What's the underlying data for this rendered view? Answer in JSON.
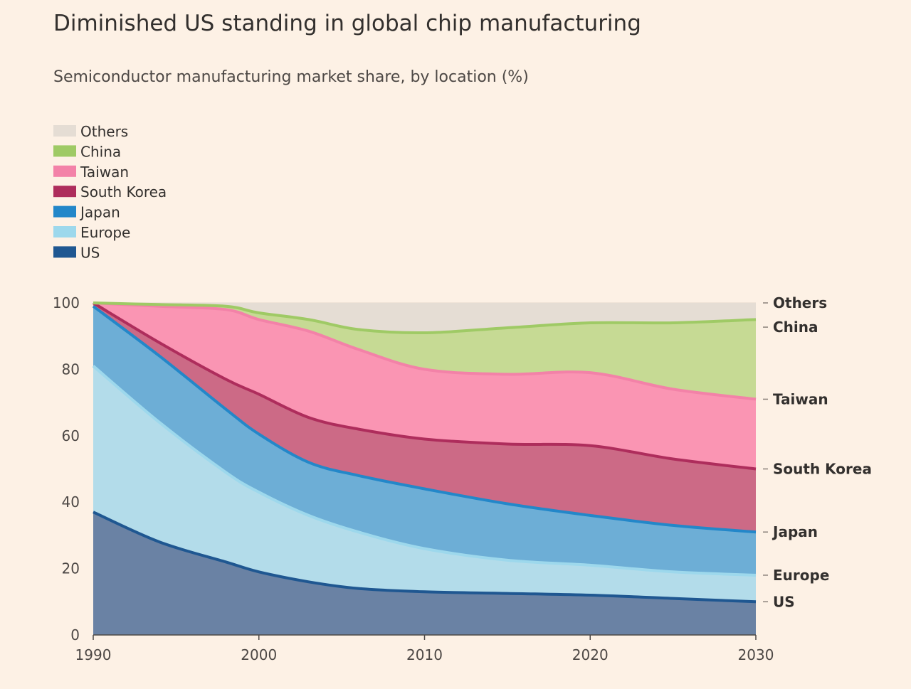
{
  "title": "Diminished US standing in global chip manufacturing",
  "subtitle": "Semiconductor manufacturing market share, by location (%)",
  "chart_data": {
    "type": "area",
    "stacked": true,
    "x": [
      1990,
      1994,
      1998,
      2000,
      2003,
      2006,
      2010,
      2015,
      2020,
      2025,
      2030
    ],
    "series": [
      {
        "name": "US",
        "color": "#1f5791",
        "fill": "#6a82a4",
        "values": [
          37,
          28,
          22,
          19,
          16,
          14,
          13,
          12.5,
          12,
          11,
          10
        ]
      },
      {
        "name": "Europe",
        "color": "#9dd8ec",
        "fill": "#b3dcea",
        "values": [
          44,
          36,
          27,
          24,
          20,
          17,
          13,
          10,
          9,
          8,
          8
        ]
      },
      {
        "name": "Japan",
        "color": "#2387c9",
        "fill": "#6daed6",
        "values": [
          18,
          20,
          19,
          17.5,
          16,
          17,
          18,
          17,
          15,
          14,
          13
        ]
      },
      {
        "name": "South Korea",
        "color": "#ae2d5c",
        "fill": "#cc6a86",
        "values": [
          1,
          4,
          9,
          12,
          13.5,
          14,
          15,
          18,
          21,
          20,
          19
        ]
      },
      {
        "name": "Taiwan",
        "color": "#f382a8",
        "fill": "#fa95b3",
        "values": [
          0,
          11,
          21,
          22.5,
          26,
          24,
          21,
          21,
          22,
          21,
          21
        ]
      },
      {
        "name": "China",
        "color": "#9fca65",
        "fill": "#c6da94",
        "values": [
          0,
          0.5,
          1,
          2,
          3.5,
          6,
          11,
          14,
          15,
          20,
          24
        ]
      },
      {
        "name": "Others",
        "color": "#e5ddd4",
        "fill": "#e5ddd4",
        "values": [
          0,
          0.5,
          1,
          3,
          5,
          8,
          9,
          7.5,
          6,
          6,
          5
        ]
      }
    ],
    "legend_order": [
      "Others",
      "China",
      "Taiwan",
      "South Korea",
      "Japan",
      "Europe",
      "US"
    ],
    "legend_position": "top-left",
    "end_labels": [
      "Others",
      "China",
      "Taiwan",
      "South Korea",
      "Japan",
      "Europe",
      "US"
    ],
    "xlim": [
      1990,
      2030
    ],
    "ylim": [
      0,
      100
    ],
    "xticks": [
      1990,
      2000,
      2010,
      2020,
      2030
    ],
    "yticks": [
      0,
      20,
      40,
      60,
      80,
      100
    ],
    "grid": true,
    "xlabel": "",
    "ylabel": ""
  }
}
